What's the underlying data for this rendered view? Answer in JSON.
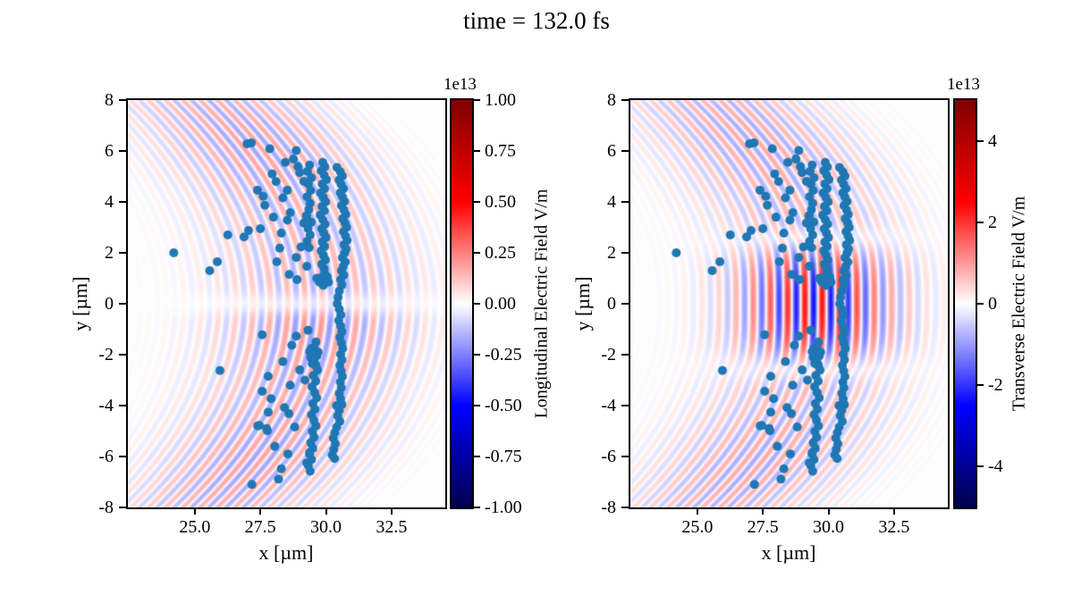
{
  "chart_data": {
    "type": "composite",
    "suptitle": "time = 132.0 fs",
    "scatter": {
      "name": "particles",
      "color": "#1f77b4",
      "marker_radius_px": 5,
      "points": [
        [
          30.42,
          5.35
        ],
        [
          30.55,
          5.18
        ],
        [
          30.63,
          5.02
        ],
        [
          30.5,
          4.86
        ],
        [
          30.58,
          4.69
        ],
        [
          30.67,
          4.52
        ],
        [
          30.55,
          4.36
        ],
        [
          30.63,
          4.19
        ],
        [
          30.71,
          4.02
        ],
        [
          30.59,
          3.85
        ],
        [
          30.69,
          3.68
        ],
        [
          30.76,
          3.51
        ],
        [
          30.64,
          3.34
        ],
        [
          30.73,
          3.17
        ],
        [
          30.79,
          3.0
        ],
        [
          30.67,
          2.83
        ],
        [
          30.75,
          2.66
        ],
        [
          30.81,
          2.49
        ],
        [
          30.69,
          2.32
        ],
        [
          30.77,
          2.15
        ],
        [
          30.71,
          1.98
        ],
        [
          30.63,
          1.81
        ],
        [
          30.74,
          1.64
        ],
        [
          30.66,
          1.47
        ],
        [
          30.59,
          1.3
        ],
        [
          30.68,
          1.12
        ],
        [
          30.56,
          0.95
        ],
        [
          30.61,
          0.74
        ],
        [
          30.51,
          0.5
        ],
        [
          30.46,
          0.25
        ],
        [
          30.43,
          0.0
        ],
        [
          30.51,
          -0.22
        ],
        [
          30.57,
          -0.44
        ],
        [
          30.49,
          -0.66
        ],
        [
          30.56,
          -0.88
        ],
        [
          30.61,
          -1.1
        ],
        [
          30.53,
          -1.32
        ],
        [
          30.59,
          -1.54
        ],
        [
          30.64,
          -1.76
        ],
        [
          30.56,
          -1.98
        ],
        [
          30.61,
          -2.2
        ],
        [
          30.53,
          -2.42
        ],
        [
          30.58,
          -2.64
        ],
        [
          30.63,
          -2.86
        ],
        [
          30.55,
          -3.08
        ],
        [
          30.59,
          -3.3
        ],
        [
          30.51,
          -3.52
        ],
        [
          30.56,
          -3.74
        ],
        [
          30.61,
          -3.96
        ],
        [
          30.51,
          -4.18
        ],
        [
          30.45,
          -4.4
        ],
        [
          30.53,
          -4.62
        ],
        [
          30.41,
          -4.84
        ],
        [
          30.34,
          -5.06
        ],
        [
          30.28,
          -5.28
        ],
        [
          30.36,
          -5.5
        ],
        [
          30.3,
          -5.72
        ],
        [
          30.24,
          -5.94
        ],
        [
          30.33,
          -6.08
        ],
        [
          30.4,
          -4.0
        ],
        [
          29.88,
          5.55
        ],
        [
          29.96,
          5.38
        ],
        [
          29.82,
          5.22
        ],
        [
          29.93,
          5.05
        ],
        [
          30.02,
          4.88
        ],
        [
          29.86,
          4.7
        ],
        [
          29.95,
          4.52
        ],
        [
          29.8,
          4.35
        ],
        [
          29.9,
          4.18
        ],
        [
          29.99,
          4.0
        ],
        [
          29.85,
          3.82
        ],
        [
          29.94,
          3.65
        ],
        [
          29.78,
          3.48
        ],
        [
          29.88,
          3.3
        ],
        [
          29.97,
          3.12
        ],
        [
          29.84,
          2.95
        ],
        [
          29.92,
          2.78
        ],
        [
          30.0,
          2.6
        ],
        [
          29.86,
          2.42
        ],
        [
          29.95,
          2.25
        ],
        [
          29.82,
          2.08
        ],
        [
          29.9,
          1.9
        ],
        [
          29.98,
          1.72
        ],
        [
          29.84,
          1.55
        ],
        [
          29.93,
          1.38
        ],
        [
          29.62,
          -1.5
        ],
        [
          29.55,
          -1.72
        ],
        [
          29.66,
          -1.94
        ],
        [
          29.5,
          -2.16
        ],
        [
          29.6,
          -2.38
        ],
        [
          29.68,
          -2.6
        ],
        [
          29.52,
          -2.82
        ],
        [
          29.61,
          -3.04
        ],
        [
          29.47,
          -3.26
        ],
        [
          29.57,
          -3.48
        ],
        [
          29.65,
          -3.7
        ],
        [
          29.5,
          -3.92
        ],
        [
          29.58,
          -4.14
        ],
        [
          29.45,
          -4.36
        ],
        [
          29.54,
          -4.58
        ],
        [
          29.62,
          -4.8
        ],
        [
          29.48,
          -5.02
        ],
        [
          29.55,
          -5.24
        ],
        [
          29.42,
          -5.46
        ],
        [
          29.5,
          -5.68
        ],
        [
          29.38,
          -5.9
        ],
        [
          29.45,
          -6.12
        ],
        [
          29.33,
          -6.35
        ],
        [
          29.4,
          -6.58
        ],
        [
          29.38,
          5.45
        ],
        [
          29.3,
          5.2
        ],
        [
          29.45,
          4.95
        ],
        [
          29.33,
          4.7
        ],
        [
          29.42,
          4.45
        ],
        [
          29.28,
          4.2
        ],
        [
          29.4,
          3.95
        ],
        [
          29.35,
          3.7
        ],
        [
          29.25,
          3.45
        ],
        [
          29.44,
          3.2
        ],
        [
          29.32,
          2.95
        ],
        [
          29.4,
          2.7
        ],
        [
          29.28,
          2.45
        ],
        [
          29.36,
          2.2
        ],
        [
          29.45,
          -1.75
        ],
        [
          29.6,
          -1.85
        ],
        [
          29.5,
          -1.95
        ],
        [
          29.65,
          -2.05
        ],
        [
          29.42,
          -2.1
        ],
        [
          29.55,
          -2.2
        ],
        [
          29.7,
          -1.9
        ],
        [
          29.48,
          -2.35
        ],
        [
          29.62,
          -2.45
        ],
        [
          29.38,
          -1.88
        ],
        [
          29.85,
          1.05
        ],
        [
          30.0,
          0.92
        ],
        [
          29.95,
          1.18
        ],
        [
          29.75,
          0.85
        ],
        [
          30.05,
          1.05
        ],
        [
          29.9,
          0.72
        ],
        [
          29.65,
          1.0
        ],
        [
          30.1,
          0.85
        ],
        [
          24.2,
          2.0
        ],
        [
          25.86,
          1.65
        ],
        [
          25.57,
          1.3
        ],
        [
          26.26,
          2.7
        ],
        [
          26.88,
          2.62
        ],
        [
          26.99,
          6.28
        ],
        [
          27.16,
          6.32
        ],
        [
          27.86,
          6.09
        ],
        [
          28.87,
          6.02
        ],
        [
          28.76,
          5.68
        ],
        [
          28.93,
          5.39
        ],
        [
          27.39,
          4.46
        ],
        [
          27.61,
          4.22
        ],
        [
          27.67,
          3.87
        ],
        [
          28.36,
          4.16
        ],
        [
          28.53,
          4.46
        ],
        [
          28.53,
          3.28
        ],
        [
          28.64,
          3.58
        ],
        [
          28.24,
          2.18
        ],
        [
          28.13,
          1.65
        ],
        [
          28.3,
          2.77
        ],
        [
          29.05,
          2.23
        ],
        [
          28.87,
          1.82
        ],
        [
          29.27,
          1.47
        ],
        [
          29.16,
          4.81
        ],
        [
          29.16,
          3.17
        ],
        [
          29.27,
          3.46
        ],
        [
          27.95,
          5.1
        ],
        [
          28.1,
          4.8
        ],
        [
          27.5,
          2.95
        ],
        [
          27.05,
          2.88
        ],
        [
          28.6,
          1.15
        ],
        [
          28.9,
          0.95
        ],
        [
          28.45,
          5.55
        ],
        [
          29.0,
          5.15
        ],
        [
          28.0,
          3.4
        ],
        [
          27.57,
          -1.22
        ],
        [
          28.7,
          -1.63
        ],
        [
          28.87,
          -1.27
        ],
        [
          29.32,
          -1.04
        ],
        [
          28.36,
          -2.27
        ],
        [
          27.8,
          -2.85
        ],
        [
          28.64,
          -3.2
        ],
        [
          27.57,
          -3.44
        ],
        [
          27.91,
          -3.73
        ],
        [
          28.42,
          -4.08
        ],
        [
          28.59,
          -4.32
        ],
        [
          27.8,
          -4.26
        ],
        [
          27.46,
          -4.78
        ],
        [
          27.74,
          -4.9
        ],
        [
          28.81,
          -4.84
        ],
        [
          29.38,
          -5.84
        ],
        [
          29.27,
          -6.25
        ],
        [
          28.3,
          -6.48
        ],
        [
          28.19,
          -6.89
        ],
        [
          27.18,
          -7.1
        ],
        [
          25.96,
          -2.62
        ],
        [
          27.4,
          -4.8
        ],
        [
          27.77,
          -4.99
        ],
        [
          28.05,
          -5.6
        ],
        [
          28.55,
          -5.9
        ],
        [
          29.0,
          -2.6
        ],
        [
          29.2,
          -3.0
        ]
      ]
    },
    "subplots": [
      {
        "id": "longitudinal",
        "xlabel": "x [µm]",
        "ylabel": "y [µm]",
        "xlim": [
          22.45,
          34.55
        ],
        "ylim": [
          -8,
          8
        ],
        "xtick_values": [
          25.0,
          27.5,
          30.0,
          32.5
        ],
        "xtick_labels": [
          "25.0",
          "27.5",
          "30.0",
          "32.5"
        ],
        "ytick_values": [
          8,
          6,
          4,
          2,
          0,
          -2,
          -4,
          -6,
          -8
        ],
        "ytick_labels": [
          "8",
          "6",
          "4",
          "2",
          "0",
          "-2",
          "-4",
          "-6",
          "-8"
        ],
        "colorbar": {
          "label": "Longitudinal Electric Field V/m",
          "offset_text": "1e13",
          "vmin": -1.0,
          "vmax": 1.0,
          "tick_values": [
            1.0,
            0.75,
            0.5,
            0.25,
            0.0,
            -0.25,
            -0.5,
            -0.75,
            -1.0
          ],
          "tick_labels": [
            "1.00",
            "0.75",
            "0.50",
            "0.25",
            "0.00",
            "-0.25",
            "-0.50",
            "-0.75",
            "-1.00"
          ],
          "colormap": "seismic"
        },
        "field": {
          "wavelength_um": 0.66,
          "curvature_radius_um": 8,
          "envelope_center_um": 29.7,
          "envelope_sigma_um": 2.6,
          "base_amp": 0.05,
          "band_amp": 0.13,
          "band_center_y": 6.3,
          "band_sigma": 2.4,
          "axial_amp": 0.1,
          "axial_sigma": 2.3,
          "axial_node": true,
          "lower_boost": 1.6,
          "phase": 0.0,
          "pulse": null
        }
      },
      {
        "id": "transverse",
        "xlabel": "x [µm]",
        "ylabel": "y [µm]",
        "xlim": [
          22.45,
          34.55
        ],
        "ylim": [
          -8,
          8
        ],
        "xtick_values": [
          25.0,
          27.5,
          30.0,
          32.5
        ],
        "xtick_labels": [
          "25.0",
          "27.5",
          "30.0",
          "32.5"
        ],
        "ytick_values": [
          8,
          6,
          4,
          2,
          0,
          -2,
          -4,
          -6,
          -8
        ],
        "ytick_labels": [
          "8",
          "6",
          "4",
          "2",
          "0",
          "-2",
          "-4",
          "-6",
          "-8"
        ],
        "colorbar": {
          "label": "Transverse Electric Field V/m",
          "offset_text": "1e13",
          "vmin": -5,
          "vmax": 5,
          "tick_values": [
            4,
            2,
            0,
            -2,
            -4
          ],
          "tick_labels": [
            "4",
            "2",
            "0",
            "-2",
            "-4"
          ],
          "colormap": "seismic"
        },
        "field": {
          "wavelength_um": 0.66,
          "curvature_radius_um": 8,
          "envelope_center_um": 29.7,
          "envelope_sigma_um": 2.6,
          "base_amp": 0.06,
          "band_amp": 0.11,
          "band_center_y": 6.3,
          "band_sigma": 2.4,
          "axial_amp": 0.05,
          "axial_sigma": 2.3,
          "axial_node": false,
          "lower_boost": 1.0,
          "phase": 0.0,
          "pulse": {
            "amp": 0.42,
            "center_x": 29.5,
            "sigma_x": 1.9,
            "sigma_y": 1.35,
            "phase": 1.2
          }
        }
      }
    ]
  }
}
